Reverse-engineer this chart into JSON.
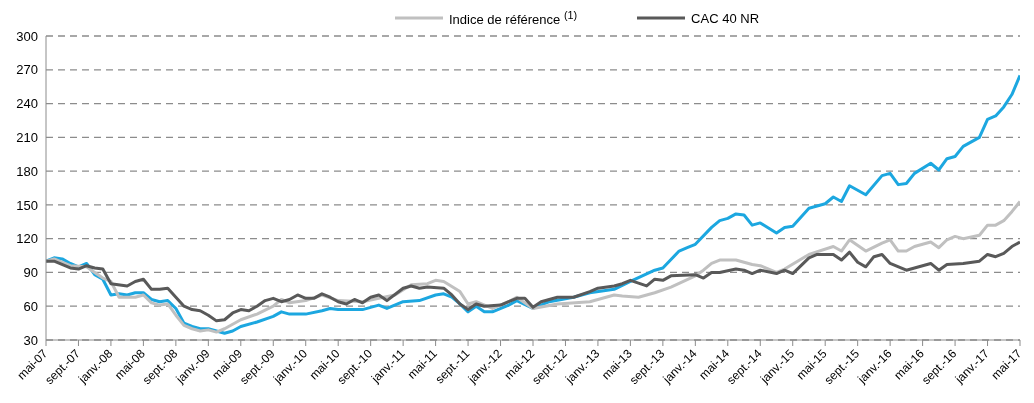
{
  "chart_data": {
    "type": "line",
    "legend": "top",
    "grid": "y",
    "line_style": "solid",
    "marker": "none",
    "ylim": [
      30,
      300
    ],
    "yticks": [
      30,
      60,
      90,
      120,
      150,
      180,
      210,
      240,
      270,
      300
    ],
    "xlim": [
      "2007-05",
      "2017-05"
    ],
    "xticks": [
      {
        "value": "2007-05",
        "label": "mai-07"
      },
      {
        "value": "2007-09",
        "label": "sept.-07"
      },
      {
        "value": "2008-01",
        "label": "janv.-08"
      },
      {
        "value": "2008-05",
        "label": "mai-08"
      },
      {
        "value": "2008-09",
        "label": "sept.-08"
      },
      {
        "value": "2009-01",
        "label": "janv.-09"
      },
      {
        "value": "2009-05",
        "label": "mai-09"
      },
      {
        "value": "2009-09",
        "label": "sept.-09"
      },
      {
        "value": "2010-01",
        "label": "janv.-10"
      },
      {
        "value": "2010-05",
        "label": "mai-10"
      },
      {
        "value": "2010-09",
        "label": "sept.-10"
      },
      {
        "value": "2011-01",
        "label": "janv.-11"
      },
      {
        "value": "2011-05",
        "label": "mai-11"
      },
      {
        "value": "2011-09",
        "label": "sept.-11"
      },
      {
        "value": "2012-01",
        "label": "janv.-12"
      },
      {
        "value": "2012-05",
        "label": "mai-12"
      },
      {
        "value": "2012-09",
        "label": "sept.-12"
      },
      {
        "value": "2013-01",
        "label": "janv.-13"
      },
      {
        "value": "2013-05",
        "label": "mai-13"
      },
      {
        "value": "2013-09",
        "label": "sept.-13"
      },
      {
        "value": "2014-01",
        "label": "janv.-14"
      },
      {
        "value": "2014-05",
        "label": "mai-14"
      },
      {
        "value": "2014-09",
        "label": "sept.-14"
      },
      {
        "value": "2015-01",
        "label": "janv.-15"
      },
      {
        "value": "2015-05",
        "label": "mai-15"
      },
      {
        "value": "2015-09",
        "label": "sept.-15"
      },
      {
        "value": "2016-01",
        "label": "janv.-16"
      },
      {
        "value": "2016-05",
        "label": "mai-16"
      },
      {
        "value": "2016-09",
        "label": "sept.-16"
      },
      {
        "value": "2017-01",
        "label": "janv.-17"
      },
      {
        "value": "2017-05",
        "label": "mai-17"
      }
    ],
    "series": [
      {
        "color": "#1ca7e0",
        "x": [
          "2007-05",
          "2007-06",
          "2007-07",
          "2007-08",
          "2007-09",
          "2007-10",
          "2007-11",
          "2007-12",
          "2008-01",
          "2008-02",
          "2008-03",
          "2008-04",
          "2008-05",
          "2008-06",
          "2008-07",
          "2008-08",
          "2008-09",
          "2008-10",
          "2008-11",
          "2008-12",
          "2009-01",
          "2009-03",
          "2009-04",
          "2009-05",
          "2009-07",
          "2009-09",
          "2009-10",
          "2009-11",
          "2010-01",
          "2010-03",
          "2010-04",
          "2010-05",
          "2010-08",
          "2010-10",
          "2010-11",
          "2011-01",
          "2011-03",
          "2011-05",
          "2011-06",
          "2011-07",
          "2011-08",
          "2011-09",
          "2011-10",
          "2011-11",
          "2011-12",
          "2012-02",
          "2012-03",
          "2012-05",
          "2012-07",
          "2012-10",
          "2012-12",
          "2013-03",
          "2013-05",
          "2013-08",
          "2013-09",
          "2013-11",
          "2013-12",
          "2014-01",
          "2014-03",
          "2014-04",
          "2014-05",
          "2014-06",
          "2014-07",
          "2014-08",
          "2014-09",
          "2014-11",
          "2014-12",
          "2015-01",
          "2015-03",
          "2015-05",
          "2015-06",
          "2015-07",
          "2015-08",
          "2015-10",
          "2015-12",
          "2016-01",
          "2016-02",
          "2016-03",
          "2016-04",
          "2016-06",
          "2016-07",
          "2016-08",
          "2016-09",
          "2016-10",
          "2016-12",
          "2017-01",
          "2017-02",
          "2017-03",
          "2017-04",
          "2017-05"
        ],
        "values": [
          100,
          103,
          102,
          98,
          95,
          98,
          88,
          84,
          70,
          71,
          70,
          72,
          72,
          66,
          64,
          65,
          58,
          45,
          42,
          40,
          40,
          36,
          38,
          42,
          46,
          51,
          55,
          53,
          53,
          56,
          58,
          57,
          57,
          61,
          58,
          64,
          65,
          70,
          71,
          68,
          62,
          55,
          60,
          55,
          55,
          61,
          65,
          58,
          64,
          68,
          72,
          75,
          82,
          92,
          94,
          109,
          112,
          115,
          130,
          136,
          138,
          142,
          141,
          132,
          134,
          125,
          130,
          131,
          147,
          151,
          157,
          153,
          167,
          159,
          176,
          178,
          168,
          169,
          178,
          187,
          181,
          191,
          193,
          202,
          210,
          226,
          229,
          237,
          248,
          265
        ]
      },
      {
        "name": "Indice de référence $^{(1)}$",
        "color": "#c0c0c0",
        "x": [
          "2007-05",
          "2007-06",
          "2007-08",
          "2007-10",
          "2007-11",
          "2007-12",
          "2008-01",
          "2008-02",
          "2008-04",
          "2008-05",
          "2008-06",
          "2008-07",
          "2008-08",
          "2008-09",
          "2008-10",
          "2008-11",
          "2008-12",
          "2009-01",
          "2009-02",
          "2009-03",
          "2009-05",
          "2009-07",
          "2009-09",
          "2009-10",
          "2009-11",
          "2010-01",
          "2010-03",
          "2010-05",
          "2010-08",
          "2010-10",
          "2010-12",
          "2011-02",
          "2011-04",
          "2011-05",
          "2011-06",
          "2011-08",
          "2011-09",
          "2011-10",
          "2011-12",
          "2012-02",
          "2012-03",
          "2012-05",
          "2012-08",
          "2012-12",
          "2013-01",
          "2013-03",
          "2013-04",
          "2013-06",
          "2013-08",
          "2013-10",
          "2014-01",
          "2014-02",
          "2014-03",
          "2014-04",
          "2014-06",
          "2014-08",
          "2014-09",
          "2014-11",
          "2014-12",
          "2015-03",
          "2015-06",
          "2015-07",
          "2015-08",
          "2015-10",
          "2015-12",
          "2016-01",
          "2016-02",
          "2016-03",
          "2016-04",
          "2016-06",
          "2016-07",
          "2016-08",
          "2016-09",
          "2016-10",
          "2016-12",
          "2017-01",
          "2017-02",
          "2017-03",
          "2017-04",
          "2017-05"
        ],
        "values": [
          100,
          102,
          96,
          95,
          90,
          85,
          82,
          68,
          68,
          70,
          63,
          61,
          62,
          52,
          43,
          40,
          38,
          39,
          37,
          40,
          48,
          53,
          60,
          66,
          63,
          65,
          70,
          65,
          64,
          67,
          70,
          79,
          80,
          83,
          82,
          73,
          62,
          64,
          58,
          64,
          68,
          58,
          62,
          64,
          66,
          70,
          69,
          68,
          72,
          77,
          87,
          92,
          98,
          101,
          101,
          97,
          96,
          90,
          93,
          106,
          113,
          109,
          119,
          109,
          116,
          119,
          109,
          109,
          113,
          117,
          112,
          119,
          122,
          120,
          123,
          132,
          132,
          136,
          144,
          153
        ]
      },
      {
        "name": "CAC 40 NR",
        "color": "#595959",
        "x": [
          "2007-05",
          "2007-06",
          "2007-08",
          "2007-09",
          "2007-10",
          "2007-11",
          "2007-12",
          "2008-01",
          "2008-03",
          "2008-04",
          "2008-05",
          "2008-06",
          "2008-07",
          "2008-08",
          "2008-09",
          "2008-10",
          "2008-11",
          "2008-12",
          "2009-01",
          "2009-02",
          "2009-03",
          "2009-04",
          "2009-05",
          "2009-06",
          "2009-07",
          "2009-08",
          "2009-09",
          "2009-10",
          "2009-11",
          "2009-12",
          "2010-01",
          "2010-02",
          "2010-03",
          "2010-04",
          "2010-05",
          "2010-06",
          "2010-07",
          "2010-08",
          "2010-09",
          "2010-10",
          "2010-11",
          "2011-01",
          "2011-02",
          "2011-03",
          "2011-04",
          "2011-06",
          "2011-07",
          "2011-08",
          "2011-09",
          "2011-10",
          "2011-11",
          "2012-01",
          "2012-02",
          "2012-03",
          "2012-04",
          "2012-05",
          "2012-06",
          "2012-08",
          "2012-10",
          "2012-12",
          "2013-01",
          "2013-03",
          "2013-04",
          "2013-05",
          "2013-07",
          "2013-08",
          "2013-09",
          "2013-10",
          "2014-01",
          "2014-02",
          "2014-03",
          "2014-04",
          "2014-06",
          "2014-07",
          "2014-08",
          "2014-09",
          "2014-11",
          "2014-12",
          "2015-01",
          "2015-03",
          "2015-04",
          "2015-06",
          "2015-07",
          "2015-08",
          "2015-09",
          "2015-10",
          "2015-11",
          "2015-12",
          "2016-01",
          "2016-03",
          "2016-04",
          "2016-06",
          "2016-07",
          "2016-08",
          "2016-10",
          "2016-12",
          "2017-01",
          "2017-02",
          "2017-03",
          "2017-04",
          "2017-05"
        ],
        "values": [
          100,
          100,
          94,
          93,
          96,
          94,
          93,
          80,
          78,
          82,
          84,
          75,
          75,
          76,
          68,
          60,
          57,
          56,
          52,
          47,
          48,
          54,
          57,
          56,
          60,
          65,
          67,
          64,
          66,
          70,
          67,
          67,
          71,
          68,
          64,
          62,
          66,
          63,
          68,
          70,
          65,
          76,
          78,
          76,
          77,
          76,
          70,
          62,
          57,
          62,
          60,
          61,
          64,
          67,
          67,
          59,
          64,
          68,
          68,
          73,
          76,
          78,
          80,
          83,
          78,
          84,
          83,
          87,
          88,
          85,
          90,
          90,
          93,
          92,
          89,
          92,
          89,
          92,
          89,
          103,
          106,
          106,
          101,
          108,
          99,
          95,
          104,
          106,
          98,
          92,
          94,
          98,
          92,
          97,
          98,
          100,
          106,
          104,
          107,
          113,
          117
        ]
      }
    ]
  }
}
